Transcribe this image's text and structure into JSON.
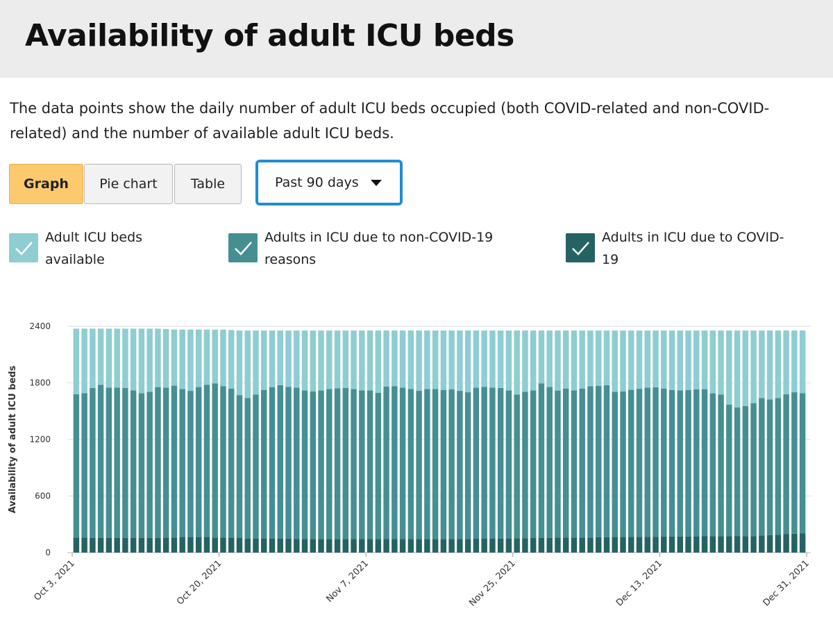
{
  "header": {
    "title": "Availability of adult ICU beds"
  },
  "description": "The data points show the daily number of adult ICU beds occupied (both COVID-related and non-COVID-related) and the number of available adult ICU beds.",
  "view_tabs": [
    {
      "label": "Graph",
      "active": true
    },
    {
      "label": "Pie chart",
      "active": false
    },
    {
      "label": "Table",
      "active": false
    }
  ],
  "range_select": {
    "value": "Past 90 days",
    "icon": "chevron-down-icon"
  },
  "legend": [
    {
      "label": "Adult ICU beds available",
      "color": "#8ecdd2",
      "checked": true,
      "icon": "check-icon"
    },
    {
      "label": "Adults in ICU due to non-COVID-19 reasons",
      "color": "#458f93",
      "checked": true,
      "icon": "check-icon"
    },
    {
      "label": "Adults in ICU due to COVID-19",
      "color": "#256264",
      "checked": true,
      "icon": "check-icon"
    }
  ],
  "chart_data": {
    "type": "bar",
    "stacked": true,
    "ylabel": "Availability of adult ICU beds",
    "yticks": [
      0,
      600,
      1200,
      1800,
      2400
    ],
    "ylim": [
      0,
      2400
    ],
    "grid": "horizontal",
    "x_tick_labels": [
      "Oct 3, 2021",
      "Oct 20, 2021",
      "Nov 7, 2021",
      "Nov 25, 2021",
      "Dec 13, 2021",
      "Dec 31, 2021"
    ],
    "x_start": "Oct 3, 2021",
    "x_end": "Dec 31, 2021",
    "series": [
      {
        "name": "Adults in ICU due to COVID-19",
        "color": "#256264",
        "values": [
          160,
          160,
          155,
          155,
          155,
          155,
          155,
          155,
          155,
          155,
          155,
          160,
          160,
          165,
          165,
          165,
          165,
          160,
          160,
          160,
          155,
          150,
          150,
          150,
          150,
          150,
          148,
          146,
          145,
          145,
          145,
          145,
          145,
          145,
          145,
          145,
          145,
          145,
          145,
          145,
          145,
          145,
          145,
          145,
          145,
          145,
          145,
          145,
          145,
          148,
          150,
          150,
          150,
          150,
          152,
          153,
          155,
          155,
          157,
          158,
          160,
          160,
          160,
          160,
          162,
          163,
          165,
          165,
          166,
          167,
          168,
          168,
          170,
          170,
          170,
          170,
          172,
          173,
          174,
          175,
          175,
          176,
          175,
          175,
          180,
          185,
          190,
          195,
          200,
          205
        ]
      },
      {
        "name": "Adults in ICU due to non-COVID-19 reasons",
        "color": "#458f93",
        "values": [
          1520,
          1530,
          1590,
          1625,
          1595,
          1595,
          1590,
          1565,
          1535,
          1550,
          1600,
          1590,
          1610,
          1570,
          1550,
          1590,
          1615,
          1635,
          1605,
          1580,
          1515,
          1490,
          1525,
          1575,
          1605,
          1625,
          1610,
          1604,
          1575,
          1565,
          1575,
          1590,
          1598,
          1600,
          1590,
          1575,
          1575,
          1550,
          1615,
          1620,
          1605,
          1590,
          1570,
          1590,
          1590,
          1580,
          1585,
          1570,
          1555,
          1600,
          1608,
          1600,
          1595,
          1570,
          1525,
          1552,
          1565,
          1640,
          1600,
          1560,
          1580,
          1560,
          1580,
          1605,
          1605,
          1612,
          1540,
          1545,
          1560,
          1570,
          1582,
          1585,
          1570,
          1555,
          1550,
          1555,
          1560,
          1560,
          1515,
          1500,
          1395,
          1364,
          1380,
          1410,
          1460,
          1440,
          1450,
          1485,
          1500,
          1485
        ]
      },
      {
        "name": "Adult ICU beds available",
        "color": "#8ecdd2",
        "values": [
          695,
          685,
          630,
          595,
          625,
          625,
          630,
          655,
          685,
          670,
          620,
          620,
          595,
          630,
          650,
          610,
          585,
          570,
          600,
          620,
          685,
          715,
          680,
          630,
          600,
          580,
          597,
          605,
          635,
          645,
          635,
          620,
          612,
          610,
          620,
          635,
          635,
          660,
          595,
          590,
          605,
          620,
          640,
          620,
          620,
          630,
          625,
          640,
          655,
          607,
          597,
          605,
          610,
          635,
          678,
          650,
          635,
          560,
          598,
          637,
          615,
          635,
          615,
          590,
          588,
          580,
          650,
          645,
          629,
          618,
          605,
          602,
          615,
          630,
          635,
          630,
          623,
          622,
          666,
          680,
          785,
          815,
          800,
          770,
          715,
          730,
          715,
          675,
          655,
          665
        ]
      }
    ]
  }
}
